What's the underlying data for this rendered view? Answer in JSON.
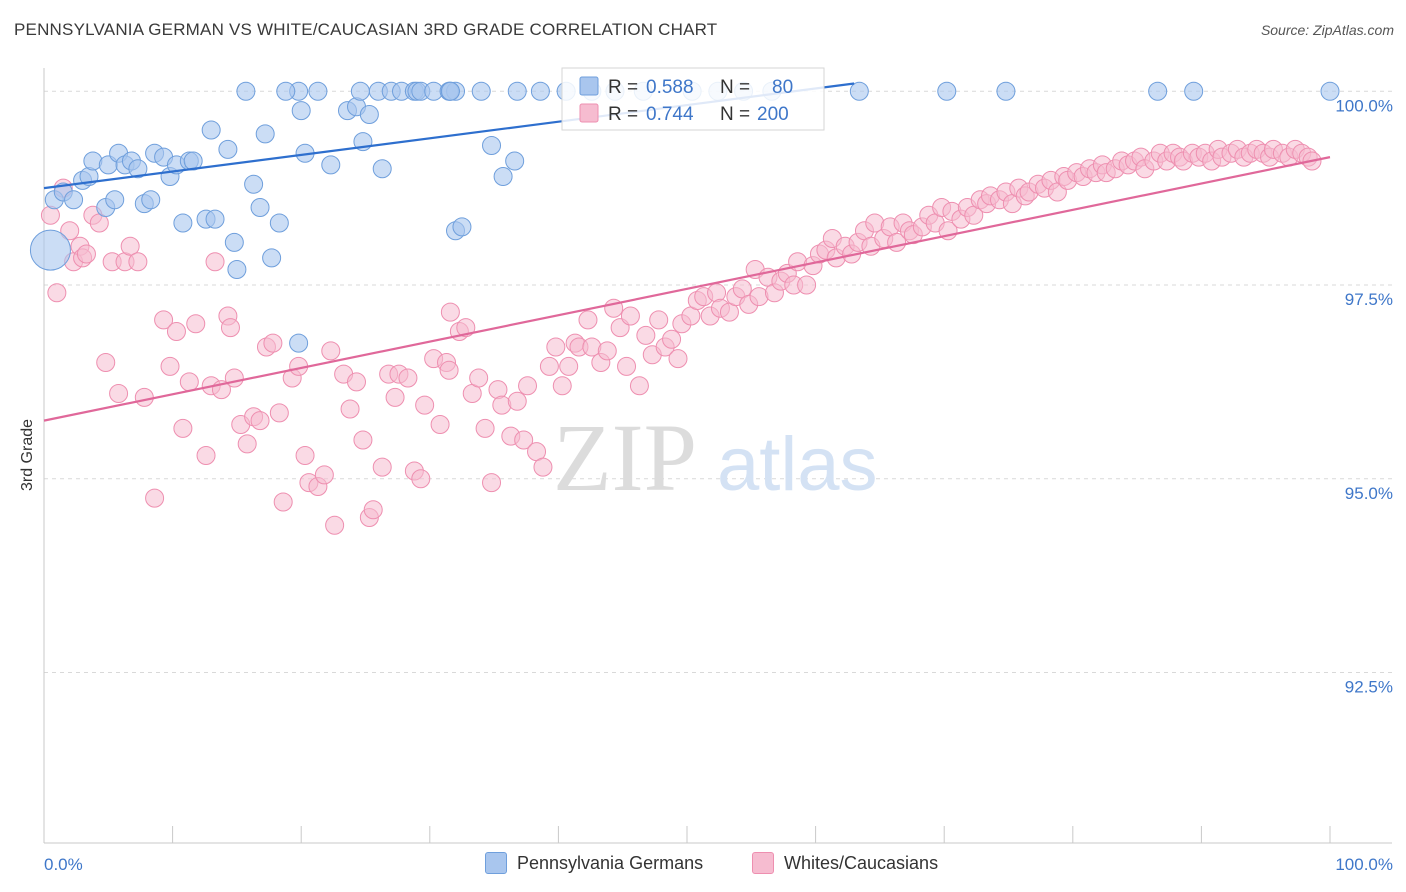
{
  "header": {
    "title": "PENNSYLVANIA GERMAN VS WHITE/CAUCASIAN 3RD GRADE CORRELATION CHART",
    "source": "Source: ZipAtlas.com"
  },
  "watermark": {
    "part1": "ZIP",
    "part2": "atlas"
  },
  "colors": {
    "blue_fill": "#a9c6ee",
    "blue_stroke": "#6f9fdc",
    "blue_line": "#2e6fce",
    "pink_fill": "#f6bcd0",
    "pink_stroke": "#ee8fb0",
    "pink_line": "#e0689a",
    "tick_label": "#3f77c9",
    "grid": "#d9d9d9"
  },
  "legend_top": {
    "rows": [
      {
        "r_label": "R = ",
        "r_value": "0.588",
        "n_label": "N = ",
        "n_value": "80"
      },
      {
        "r_label": "R = ",
        "r_value": "0.744",
        "n_label": "N = ",
        "n_value": "200"
      }
    ]
  },
  "legend_bottom": {
    "items": [
      "Pennsylvania Germans",
      "Whites/Caucasians"
    ]
  },
  "chart_data": {
    "type": "scatter",
    "ylabel": "3rd Grade",
    "xlabel": "",
    "x_tick_labels": [
      "0.0%",
      "100.0%"
    ],
    "y_tick_labels": [
      "100.0%",
      "97.5%",
      "95.0%",
      "92.5%"
    ],
    "y_ticks": [
      100.0,
      97.5,
      95.0,
      92.5
    ],
    "xlim": [
      0,
      100
    ],
    "ylim": [
      90.3,
      100.3
    ],
    "grid": true,
    "legend_placement": "top-center",
    "series": [
      {
        "name": "Pennsylvania Germans",
        "color": "#a9c6ee",
        "trend": {
          "x": [
            0,
            63
          ],
          "y": [
            98.75,
            100.1
          ]
        },
        "points": [
          [
            0.8,
            98.6
          ],
          [
            1.5,
            98.7
          ],
          [
            2.3,
            98.6
          ],
          [
            3,
            98.85
          ],
          [
            3.5,
            98.9
          ],
          [
            3.8,
            99.1
          ],
          [
            4.8,
            98.5
          ],
          [
            5,
            99.05
          ],
          [
            5.5,
            98.6
          ],
          [
            5.8,
            99.2
          ],
          [
            6.3,
            99.05
          ],
          [
            6.8,
            99.1
          ],
          [
            7.3,
            99.0
          ],
          [
            7.8,
            98.55
          ],
          [
            8.3,
            98.6
          ],
          [
            8.6,
            99.2
          ],
          [
            9.3,
            99.15
          ],
          [
            9.8,
            98.9
          ],
          [
            10.3,
            99.05
          ],
          [
            10.8,
            98.3
          ],
          [
            11.3,
            99.1
          ],
          [
            11.6,
            99.1
          ],
          [
            12.6,
            98.35
          ],
          [
            13,
            99.5
          ],
          [
            13.3,
            98.35
          ],
          [
            14.3,
            99.25
          ],
          [
            14.8,
            98.05
          ],
          [
            15,
            97.7
          ],
          [
            16.3,
            98.8
          ],
          [
            16.8,
            98.5
          ],
          [
            17.2,
            99.45
          ],
          [
            17.7,
            97.85
          ],
          [
            18.3,
            98.3
          ],
          [
            19.8,
            96.75
          ],
          [
            19.8,
            100.0
          ],
          [
            20,
            99.75
          ],
          [
            20.3,
            99.2
          ],
          [
            22.3,
            99.05
          ],
          [
            23.6,
            99.75
          ],
          [
            24.3,
            99.8
          ],
          [
            24.8,
            99.35
          ],
          [
            25.3,
            99.7
          ],
          [
            26,
            100.0
          ],
          [
            26.3,
            99.0
          ],
          [
            27,
            100.0
          ],
          [
            27.8,
            100.0
          ],
          [
            28.8,
            100.0
          ],
          [
            29,
            100.0
          ],
          [
            29.3,
            100.0
          ],
          [
            30.3,
            100.0
          ],
          [
            32,
            98.2
          ],
          [
            32.5,
            98.25
          ],
          [
            34,
            100.0
          ],
          [
            31.5,
            100.0
          ],
          [
            32,
            100.0
          ],
          [
            31.6,
            100.0
          ],
          [
            31.6,
            100.0
          ],
          [
            15.7,
            100.0
          ],
          [
            18.8,
            100.0
          ],
          [
            21.3,
            100.0
          ],
          [
            24.6,
            100.0
          ],
          [
            34.8,
            99.3
          ],
          [
            36.8,
            100.0
          ],
          [
            35.7,
            98.9
          ],
          [
            38.6,
            100.0
          ],
          [
            36.6,
            99.1
          ],
          [
            40.6,
            100.0
          ],
          [
            42.6,
            100.0
          ],
          [
            44.4,
            100.0
          ],
          [
            46.6,
            100.0
          ],
          [
            50.4,
            100.0
          ],
          [
            52.4,
            100.0
          ],
          [
            54.4,
            100.0
          ],
          [
            56.6,
            100.0
          ],
          [
            63.4,
            100.0
          ],
          [
            70.2,
            100.0
          ],
          [
            74.8,
            100.0
          ],
          [
            86.6,
            100.0
          ],
          [
            89.4,
            100.0
          ],
          [
            100,
            100.0
          ]
        ]
      },
      {
        "name": "Whites/Caucasians",
        "color": "#f6bcd0",
        "trend": {
          "x": [
            0,
            100
          ],
          "y": [
            95.75,
            99.15
          ]
        },
        "points": [
          [
            0.5,
            98.4
          ],
          [
            1,
            97.4
          ],
          [
            1.5,
            98.75
          ],
          [
            2,
            98.2
          ],
          [
            2.3,
            97.8
          ],
          [
            2.8,
            98.0
          ],
          [
            3,
            97.85
          ],
          [
            3.3,
            97.9
          ],
          [
            3.8,
            98.4
          ],
          [
            4.3,
            98.3
          ],
          [
            4.8,
            96.5
          ],
          [
            5.3,
            97.8
          ],
          [
            5.8,
            96.1
          ],
          [
            6.3,
            97.8
          ],
          [
            6.7,
            98.0
          ],
          [
            7.3,
            97.8
          ],
          [
            7.8,
            96.05
          ],
          [
            8.6,
            94.75
          ],
          [
            9.3,
            97.05
          ],
          [
            9.8,
            96.45
          ],
          [
            10.3,
            96.9
          ],
          [
            10.8,
            95.65
          ],
          [
            11.3,
            96.25
          ],
          [
            11.8,
            97.0
          ],
          [
            12.6,
            95.3
          ],
          [
            13,
            96.2
          ],
          [
            13.3,
            97.8
          ],
          [
            13.8,
            96.15
          ],
          [
            14.3,
            97.1
          ],
          [
            14.5,
            96.95
          ],
          [
            14.8,
            96.3
          ],
          [
            15.3,
            95.7
          ],
          [
            15.8,
            95.45
          ],
          [
            16.3,
            95.8
          ],
          [
            16.8,
            95.75
          ],
          [
            17.3,
            96.7
          ],
          [
            17.8,
            96.75
          ],
          [
            18.3,
            95.85
          ],
          [
            18.6,
            94.7
          ],
          [
            19.3,
            96.3
          ],
          [
            19.8,
            96.45
          ],
          [
            20.3,
            95.3
          ],
          [
            20.6,
            94.95
          ],
          [
            21.3,
            94.9
          ],
          [
            21.8,
            95.05
          ],
          [
            22.3,
            96.65
          ],
          [
            22.6,
            94.4
          ],
          [
            23.3,
            96.35
          ],
          [
            23.8,
            95.9
          ],
          [
            24.3,
            96.25
          ],
          [
            24.8,
            95.5
          ],
          [
            25.3,
            94.5
          ],
          [
            25.6,
            94.6
          ],
          [
            26.3,
            95.15
          ],
          [
            26.8,
            96.35
          ],
          [
            27.3,
            96.05
          ],
          [
            27.6,
            96.35
          ],
          [
            28.3,
            96.3
          ],
          [
            28.8,
            95.1
          ],
          [
            29.3,
            95.0
          ],
          [
            29.6,
            95.95
          ],
          [
            30.3,
            96.55
          ],
          [
            30.8,
            95.7
          ],
          [
            31.3,
            96.5
          ],
          [
            31.5,
            96.4
          ],
          [
            31.6,
            97.15
          ],
          [
            32.3,
            96.9
          ],
          [
            32.8,
            96.95
          ],
          [
            33.3,
            96.1
          ],
          [
            33.8,
            96.3
          ],
          [
            34.3,
            95.65
          ],
          [
            34.8,
            94.95
          ],
          [
            35.3,
            96.15
          ],
          [
            35.6,
            95.95
          ],
          [
            36.3,
            95.55
          ],
          [
            36.8,
            96.0
          ],
          [
            37.3,
            95.5
          ],
          [
            37.6,
            96.2
          ],
          [
            38.3,
            95.35
          ],
          [
            38.8,
            95.15
          ],
          [
            39.3,
            96.45
          ],
          [
            39.8,
            96.7
          ],
          [
            40.3,
            96.2
          ],
          [
            40.8,
            96.45
          ],
          [
            41.3,
            96.75
          ],
          [
            41.6,
            96.7
          ],
          [
            42.3,
            97.05
          ],
          [
            42.6,
            96.7
          ],
          [
            43.3,
            96.5
          ],
          [
            43.8,
            96.65
          ],
          [
            44.3,
            97.2
          ],
          [
            44.8,
            96.95
          ],
          [
            45.3,
            96.45
          ],
          [
            45.6,
            97.1
          ],
          [
            46.3,
            96.2
          ],
          [
            46.8,
            96.85
          ],
          [
            47.3,
            96.6
          ],
          [
            47.8,
            97.05
          ],
          [
            48.3,
            96.7
          ],
          [
            48.8,
            96.8
          ],
          [
            49.3,
            96.55
          ],
          [
            49.6,
            97.0
          ],
          [
            50.3,
            97.1
          ],
          [
            50.8,
            97.3
          ],
          [
            51.3,
            97.35
          ],
          [
            51.8,
            97.1
          ],
          [
            52.3,
            97.4
          ],
          [
            52.6,
            97.2
          ],
          [
            53.3,
            97.15
          ],
          [
            53.8,
            97.35
          ],
          [
            54.3,
            97.45
          ],
          [
            54.8,
            97.25
          ],
          [
            55.3,
            97.7
          ],
          [
            55.6,
            97.35
          ],
          [
            56.3,
            97.6
          ],
          [
            56.8,
            97.4
          ],
          [
            57.3,
            97.55
          ],
          [
            57.8,
            97.65
          ],
          [
            58.3,
            97.5
          ],
          [
            58.6,
            97.8
          ],
          [
            59.3,
            97.5
          ],
          [
            59.8,
            97.75
          ],
          [
            60.3,
            97.9
          ],
          [
            60.8,
            97.95
          ],
          [
            61.3,
            98.1
          ],
          [
            61.6,
            97.85
          ],
          [
            62.3,
            98.0
          ],
          [
            62.8,
            97.9
          ],
          [
            63.3,
            98.05
          ],
          [
            63.8,
            98.2
          ],
          [
            64.3,
            98.0
          ],
          [
            64.6,
            98.3
          ],
          [
            65.3,
            98.1
          ],
          [
            65.8,
            98.25
          ],
          [
            66.3,
            98.05
          ],
          [
            66.8,
            98.3
          ],
          [
            67.3,
            98.2
          ],
          [
            67.6,
            98.15
          ],
          [
            68.3,
            98.25
          ],
          [
            68.8,
            98.4
          ],
          [
            69.3,
            98.3
          ],
          [
            69.8,
            98.5
          ],
          [
            70.3,
            98.2
          ],
          [
            70.6,
            98.45
          ],
          [
            71.3,
            98.35
          ],
          [
            71.8,
            98.5
          ],
          [
            72.3,
            98.4
          ],
          [
            72.8,
            98.6
          ],
          [
            73.3,
            98.55
          ],
          [
            73.6,
            98.65
          ],
          [
            74.3,
            98.6
          ],
          [
            74.8,
            98.7
          ],
          [
            75.3,
            98.55
          ],
          [
            75.8,
            98.75
          ],
          [
            76.3,
            98.65
          ],
          [
            76.6,
            98.7
          ],
          [
            77.3,
            98.8
          ],
          [
            77.8,
            98.75
          ],
          [
            78.3,
            98.85
          ],
          [
            78.8,
            98.7
          ],
          [
            79.3,
            98.9
          ],
          [
            79.6,
            98.85
          ],
          [
            80.3,
            98.95
          ],
          [
            80.8,
            98.9
          ],
          [
            81.3,
            99.0
          ],
          [
            81.8,
            98.95
          ],
          [
            82.3,
            99.05
          ],
          [
            82.6,
            98.95
          ],
          [
            83.3,
            99.0
          ],
          [
            83.8,
            99.1
          ],
          [
            84.3,
            99.05
          ],
          [
            84.8,
            99.1
          ],
          [
            85.3,
            99.15
          ],
          [
            85.6,
            99.0
          ],
          [
            86.3,
            99.1
          ],
          [
            86.8,
            99.2
          ],
          [
            87.3,
            99.1
          ],
          [
            87.8,
            99.2
          ],
          [
            88.3,
            99.15
          ],
          [
            88.6,
            99.1
          ],
          [
            89.3,
            99.2
          ],
          [
            89.8,
            99.15
          ],
          [
            90.3,
            99.2
          ],
          [
            90.8,
            99.1
          ],
          [
            91.3,
            99.25
          ],
          [
            91.6,
            99.15
          ],
          [
            92.3,
            99.2
          ],
          [
            92.8,
            99.25
          ],
          [
            93.3,
            99.15
          ],
          [
            93.8,
            99.2
          ],
          [
            94.3,
            99.25
          ],
          [
            94.8,
            99.2
          ],
          [
            95.3,
            99.15
          ],
          [
            95.6,
            99.25
          ],
          [
            96.3,
            99.2
          ],
          [
            96.8,
            99.15
          ],
          [
            97.3,
            99.25
          ],
          [
            97.8,
            99.2
          ],
          [
            98.3,
            99.15
          ],
          [
            98.6,
            99.1
          ]
        ]
      }
    ]
  }
}
